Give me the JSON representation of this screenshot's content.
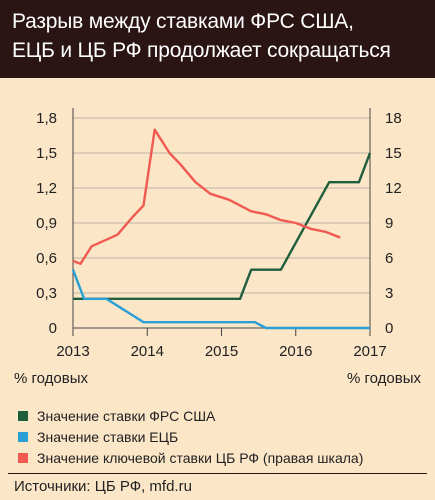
{
  "header": {
    "title_line1": "Разрыв между ставками ФРС США,",
    "title_line2": "ЕЦБ и ЦБ РФ продолжает сокращаться"
  },
  "units": {
    "left": "% годовых",
    "right": "% годовых"
  },
  "legend": [
    {
      "label": "Значение ставки ФРС США",
      "color": "#1e5e3c"
    },
    {
      "label": "Значение ставки ЕЦБ",
      "color": "#2a9fd6"
    },
    {
      "label": "Значение ключевой ставки ЦБ РФ (правая шкала)",
      "color": "#f05a50"
    }
  ],
  "source": "Источники: ЦБ РФ, mfd.ru",
  "colors": {
    "header_bg": "#2a1414",
    "background": "#fbe6c8",
    "grid": "#bfb3a3"
  },
  "chart_data": {
    "type": "line",
    "title": "Разрыв между ставками ФРС США, ЕЦБ и ЦБ РФ продолжает сокращаться",
    "x_ticks": [
      "2013",
      "2014",
      "2015",
      "2016",
      "2017"
    ],
    "xlim": [
      2013,
      2017
    ],
    "y_left": {
      "lim": [
        0,
        1.8
      ],
      "ticks": [
        "0",
        "0,3",
        "0,6",
        "0,9",
        "1,2",
        "1,5",
        "1,8"
      ],
      "label": "% годовых"
    },
    "y_right": {
      "lim": [
        0,
        18
      ],
      "ticks": [
        "0",
        "3",
        "6",
        "9",
        "12",
        "15",
        "18"
      ],
      "label": "% годовых"
    },
    "grid": "horizontal",
    "series": [
      {
        "name": "Значение ставки ФРС США",
        "axis": "left",
        "color": "#1e5e3c",
        "points": [
          [
            2013.0,
            0.25
          ],
          [
            2014.0,
            0.25
          ],
          [
            2015.25,
            0.25
          ],
          [
            2015.4,
            0.5
          ],
          [
            2015.8,
            0.5
          ],
          [
            2016.45,
            1.25
          ],
          [
            2016.85,
            1.25
          ],
          [
            2017.0,
            1.5
          ]
        ]
      },
      {
        "name": "Значение ставки ЕЦБ",
        "axis": "left",
        "color": "#2a9fd6",
        "points": [
          [
            2013.0,
            0.5
          ],
          [
            2013.15,
            0.25
          ],
          [
            2013.45,
            0.25
          ],
          [
            2013.95,
            0.05
          ],
          [
            2014.5,
            0.05
          ],
          [
            2015.45,
            0.05
          ],
          [
            2015.6,
            0.0
          ],
          [
            2017.0,
            0.0
          ]
        ]
      },
      {
        "name": "Значение ключевой ставки ЦБ РФ (правая шкала)",
        "axis": "right",
        "color": "#f05a50",
        "points": [
          [
            2013.0,
            5.75
          ],
          [
            2013.1,
            5.5
          ],
          [
            2013.25,
            7.0
          ],
          [
            2013.6,
            8.0
          ],
          [
            2013.8,
            9.5
          ],
          [
            2013.95,
            10.5
          ],
          [
            2014.1,
            17.0
          ],
          [
            2014.3,
            15.0
          ],
          [
            2014.45,
            14.0
          ],
          [
            2014.65,
            12.5
          ],
          [
            2014.85,
            11.5
          ],
          [
            2015.1,
            11.0
          ],
          [
            2015.4,
            10.0
          ],
          [
            2015.6,
            9.75
          ],
          [
            2015.8,
            9.25
          ],
          [
            2016.0,
            9.0
          ],
          [
            2016.2,
            8.5
          ],
          [
            2016.4,
            8.25
          ],
          [
            2016.6,
            7.75
          ]
        ]
      }
    ]
  }
}
